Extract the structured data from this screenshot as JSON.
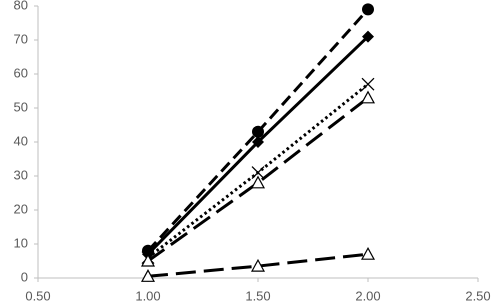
{
  "chart_data": {
    "type": "line",
    "x": [
      1.0,
      1.5,
      2.0
    ],
    "series": [
      {
        "color": "#000000",
        "dash": "dashed",
        "marker": "circle",
        "values": [
          8,
          43,
          79
        ]
      },
      {
        "color": "#000000",
        "dash": "solid",
        "marker": "diamond",
        "values": [
          7,
          40,
          71
        ]
      },
      {
        "color": "#000000",
        "dash": "dotted",
        "marker": "x",
        "values": [
          6,
          31,
          57
        ]
      },
      {
        "color": "#000000",
        "dash": "long-dash",
        "marker": "open-triangle",
        "values": [
          5,
          28,
          53
        ]
      },
      {
        "color": "#000000",
        "dash": "long-dash",
        "marker": "open-triangle",
        "values": [
          0.5,
          3.5,
          7
        ]
      }
    ],
    "xlim": [
      0.5,
      2.5
    ],
    "xticks": [
      {
        "value": 0.5,
        "label": "0.50"
      },
      {
        "value": 1.0,
        "label": "1.00"
      },
      {
        "value": 1.5,
        "label": "1.50"
      },
      {
        "value": 2.0,
        "label": "2.00"
      },
      {
        "value": 2.5,
        "label": "2.50"
      }
    ],
    "ylim": [
      0,
      80
    ],
    "yticks": [
      0,
      10,
      20,
      30,
      40,
      50,
      60,
      70,
      80
    ],
    "grid": false
  }
}
